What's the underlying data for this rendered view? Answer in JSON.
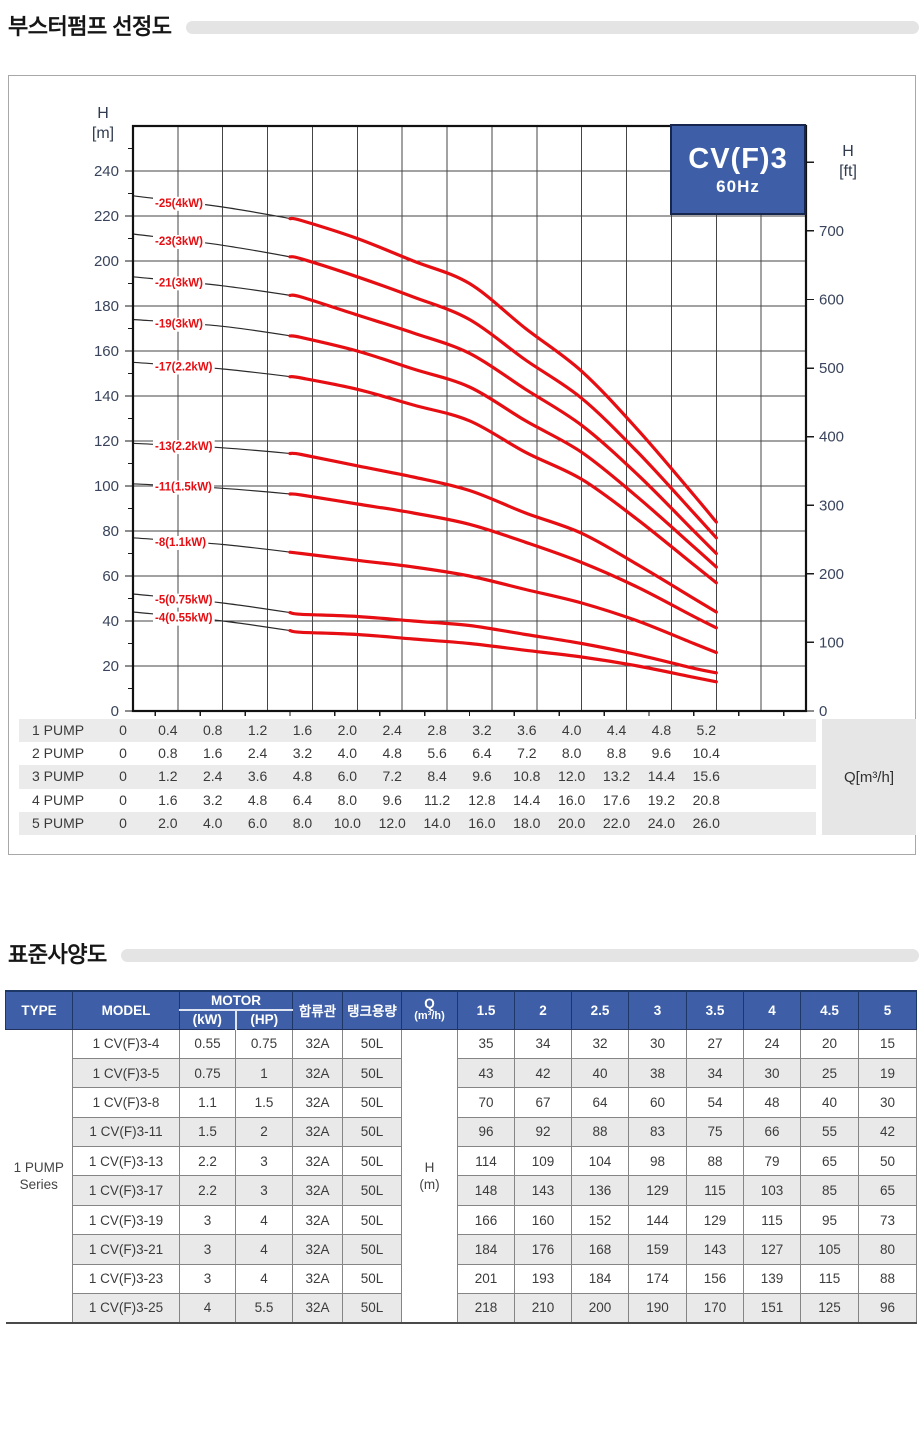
{
  "colors": {
    "accent_blue": "#3e5fa7",
    "header_border_navy": "#1d3766",
    "curve_red": "#e60e12",
    "grid_gray": "#454545",
    "stripe_gray": "#ebebeb",
    "panel_gray": "#e6e6e6",
    "pill_gray": "#e4e4e4"
  },
  "sections": {
    "selection_title": "부스터펌프 선정도",
    "spec_title": "표준사양도"
  },
  "chart": {
    "badge_model": "CV(F)3",
    "badge_freq": "60Hz",
    "left_axis_title_1": "H",
    "left_axis_title_2": "[m]",
    "right_axis_title_1": "H",
    "right_axis_title_2": "[ft]",
    "flow_unit_label": "Q[m³/h]"
  },
  "chart_data": {
    "type": "line",
    "title": "CV(F)3 60Hz booster pump selection curves",
    "xlabel": "Q[m³/h]",
    "ylabel_left": "H [m]",
    "ylabel_right": "H [ft]",
    "xlim": [
      0,
      6.0
    ],
    "ylim": [
      0,
      260
    ],
    "x_grid_step": 0.4,
    "y_grid_step": 20,
    "left_tick_labels": [
      0,
      20,
      40,
      60,
      80,
      100,
      120,
      140,
      160,
      180,
      200,
      220,
      240
    ],
    "right_tick_labels_ft": [
      0,
      100,
      200,
      300,
      400,
      500,
      600,
      700
    ],
    "right_tick_max_ft": 800,
    "m_per_ft": 0.3048,
    "grid_on": true,
    "highlight_range": [
      1.4,
      5.2
    ],
    "x": [
      0,
      0.8,
      1.5,
      2,
      2.5,
      3,
      3.5,
      4,
      4.5,
      5,
      5.2
    ],
    "series": [
      {
        "name": "-25(4kW)",
        "values": [
          229,
          224,
          218,
          210,
          200,
          190,
          170,
          151,
          125,
          96,
          84
        ]
      },
      {
        "name": "-23(3kW)",
        "values": [
          212,
          207,
          201,
          193,
          184,
          174,
          156,
          139,
          115,
          88,
          77
        ]
      },
      {
        "name": "-21(3kW)",
        "values": [
          193,
          189,
          184,
          176,
          168,
          159,
          143,
          127,
          105,
          80,
          70
        ]
      },
      {
        "name": "-19(3kW)",
        "values": [
          174,
          171,
          166,
          160,
          152,
          144,
          129,
          115,
          95,
          73,
          64
        ]
      },
      {
        "name": "-17(2.2kW)",
        "values": [
          155,
          152,
          148,
          143,
          136,
          129,
          115,
          103,
          85,
          65,
          57
        ]
      },
      {
        "name": "-13(2.2kW)",
        "values": [
          119,
          117,
          114,
          109,
          104,
          98,
          88,
          79,
          65,
          50,
          44
        ]
      },
      {
        "name": "-11(1.5kW)",
        "values": [
          101,
          99,
          96,
          92,
          88,
          83,
          75,
          66,
          55,
          42,
          37
        ]
      },
      {
        "name": "-8(1.1kW)",
        "values": [
          77,
          74,
          70,
          67,
          64,
          60,
          54,
          48,
          40,
          30,
          26
        ]
      },
      {
        "name": "-5(0.75kW)",
        "values": [
          52,
          48,
          43,
          42,
          40,
          38,
          34,
          30,
          25,
          19,
          17
        ]
      },
      {
        "name": "-4(0.55kW)",
        "values": [
          44,
          40,
          35,
          34,
          32,
          30,
          27,
          24,
          20,
          15,
          13
        ]
      }
    ]
  },
  "pump_flow_table": {
    "rows": [
      {
        "label": "1 PUMP",
        "values": [
          "0",
          "0.4",
          "0.8",
          "1.2",
          "1.6",
          "2.0",
          "2.4",
          "2.8",
          "3.2",
          "3.6",
          "4.0",
          "4.4",
          "4.8",
          "5.2"
        ]
      },
      {
        "label": "2 PUMP",
        "values": [
          "0",
          "0.8",
          "1.6",
          "2.4",
          "3.2",
          "4.0",
          "4.8",
          "5.6",
          "6.4",
          "7.2",
          "8.0",
          "8.8",
          "9.6",
          "10.4"
        ]
      },
      {
        "label": "3 PUMP",
        "values": [
          "0",
          "1.2",
          "2.4",
          "3.6",
          "4.8",
          "6.0",
          "7.2",
          "8.4",
          "9.6",
          "10.8",
          "12.0",
          "13.2",
          "14.4",
          "15.6"
        ]
      },
      {
        "label": "4 PUMP",
        "values": [
          "0",
          "1.6",
          "3.2",
          "4.8",
          "6.4",
          "8.0",
          "9.6",
          "11.2",
          "12.8",
          "14.4",
          "16.0",
          "17.6",
          "19.2",
          "20.8"
        ]
      },
      {
        "label": "5 PUMP",
        "values": [
          "0",
          "2.0",
          "4.0",
          "6.0",
          "8.0",
          "10.0",
          "12.0",
          "14.0",
          "16.0",
          "18.0",
          "20.0",
          "22.0",
          "24.0",
          "26.0"
        ]
      }
    ]
  },
  "spec_table": {
    "headers": {
      "type": "TYPE",
      "model": "MODEL",
      "motor": "MOTOR",
      "kw": "(kW)",
      "hp": "(HP)",
      "pipe": "합류관",
      "tank": "탱크용량",
      "q_line1": "Q",
      "q_line2": "(m³/h)"
    },
    "flow_headers": [
      "1.5",
      "2",
      "2.5",
      "3",
      "3.5",
      "4",
      "4.5",
      "5"
    ],
    "type_group_line1": "1 PUMP",
    "type_group_line2": "Series",
    "unit_line1": "H",
    "unit_line2": "(m)",
    "rows": [
      {
        "model": "1 CV(F)3-4",
        "kw": "0.55",
        "hp": "0.75",
        "pipe": "32A",
        "tank": "50L",
        "heads": [
          35,
          34,
          32,
          30,
          27,
          24,
          20,
          15
        ]
      },
      {
        "model": "1 CV(F)3-5",
        "kw": "0.75",
        "hp": "1",
        "pipe": "32A",
        "tank": "50L",
        "heads": [
          43,
          42,
          40,
          38,
          34,
          30,
          25,
          19
        ]
      },
      {
        "model": "1 CV(F)3-8",
        "kw": "1.1",
        "hp": "1.5",
        "pipe": "32A",
        "tank": "50L",
        "heads": [
          70,
          67,
          64,
          60,
          54,
          48,
          40,
          30
        ]
      },
      {
        "model": "1 CV(F)3-11",
        "kw": "1.5",
        "hp": "2",
        "pipe": "32A",
        "tank": "50L",
        "heads": [
          96,
          92,
          88,
          83,
          75,
          66,
          55,
          42
        ]
      },
      {
        "model": "1 CV(F)3-13",
        "kw": "2.2",
        "hp": "3",
        "pipe": "32A",
        "tank": "50L",
        "heads": [
          114,
          109,
          104,
          98,
          88,
          79,
          65,
          50
        ]
      },
      {
        "model": "1 CV(F)3-17",
        "kw": "2.2",
        "hp": "3",
        "pipe": "32A",
        "tank": "50L",
        "heads": [
          148,
          143,
          136,
          129,
          115,
          103,
          85,
          65
        ]
      },
      {
        "model": "1 CV(F)3-19",
        "kw": "3",
        "hp": "4",
        "pipe": "32A",
        "tank": "50L",
        "heads": [
          166,
          160,
          152,
          144,
          129,
          115,
          95,
          73
        ]
      },
      {
        "model": "1 CV(F)3-21",
        "kw": "3",
        "hp": "4",
        "pipe": "32A",
        "tank": "50L",
        "heads": [
          184,
          176,
          168,
          159,
          143,
          127,
          105,
          80
        ]
      },
      {
        "model": "1 CV(F)3-23",
        "kw": "3",
        "hp": "4",
        "pipe": "32A",
        "tank": "50L",
        "heads": [
          201,
          193,
          184,
          174,
          156,
          139,
          115,
          88
        ]
      },
      {
        "model": "1 CV(F)3-25",
        "kw": "4",
        "hp": "5.5",
        "pipe": "32A",
        "tank": "50L",
        "heads": [
          218,
          210,
          200,
          190,
          170,
          151,
          125,
          96
        ]
      }
    ]
  }
}
